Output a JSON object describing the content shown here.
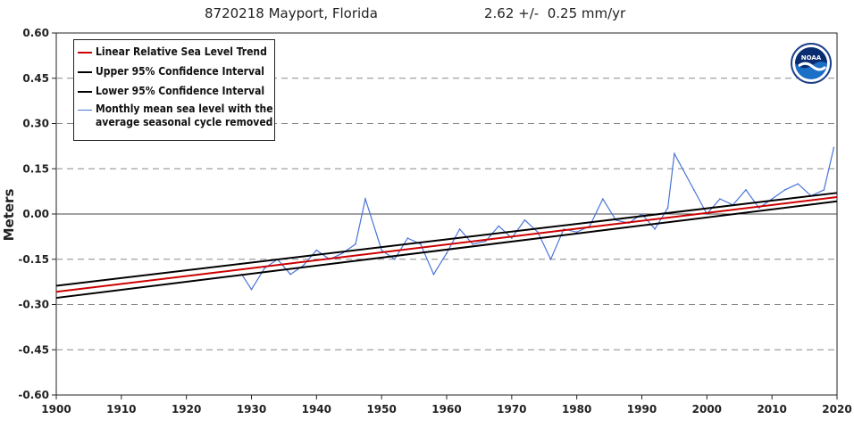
{
  "header": {
    "station": "8720218 Mayport, Florida",
    "rate": "2.62 +/-  0.25 mm/yr"
  },
  "legend": {
    "items": [
      {
        "label": "Linear Relative Sea Level Trend",
        "color": "#cc0000"
      },
      {
        "label": "Upper 95% Confidence Interval",
        "color": "#000000"
      },
      {
        "label": "Lower 95% Confidence Interval",
        "color": "#000000"
      },
      {
        "label_line1": "Monthly mean sea level with the",
        "label_line2": "average seasonal cycle removed",
        "color": "#4a74d8"
      }
    ]
  },
  "logo": {
    "name": "NOAA",
    "text": "NOAA"
  },
  "chart_data": {
    "type": "line",
    "title": "8720218 Mayport, Florida",
    "subtitle": "2.62 +/-  0.25 mm/yr",
    "xlabel": "",
    "ylabel": "Meters",
    "xlim": [
      1900,
      2020
    ],
    "ylim": [
      -0.6,
      0.6
    ],
    "x_ticks": [
      1900,
      1910,
      1920,
      1930,
      1940,
      1950,
      1960,
      1970,
      1980,
      1990,
      2000,
      2010,
      2020
    ],
    "y_ticks": [
      -0.6,
      -0.45,
      -0.3,
      -0.15,
      0.0,
      0.15,
      0.3,
      0.45,
      0.6
    ],
    "y_tick_labels": [
      "-0.60",
      "-0.45",
      "-0.30",
      "-0.15",
      "0.00",
      "0.15",
      "0.30",
      "0.45",
      "0.60"
    ],
    "grid": "horizontal-dashed",
    "series": [
      {
        "name": "Linear Relative Sea Level Trend",
        "color": "#cc0000",
        "x": [
          1900,
          2020
        ],
        "y": [
          -0.258,
          0.056
        ]
      },
      {
        "name": "Upper 95% Confidence Interval",
        "color": "#000000",
        "x": [
          1900,
          2020
        ],
        "y": [
          -0.238,
          0.07
        ]
      },
      {
        "name": "Lower 95% Confidence Interval",
        "color": "#000000",
        "x": [
          1900,
          2020
        ],
        "y": [
          -0.278,
          0.042
        ]
      },
      {
        "name": "Monthly mean sea level with the average seasonal cycle removed",
        "color": "#4a74d8",
        "x": [
          1928.5,
          1930,
          1932,
          1934,
          1936,
          1938,
          1940,
          1942,
          1944,
          1946,
          1947.5,
          1950,
          1952,
          1954,
          1956,
          1958,
          1960,
          1962,
          1964,
          1966,
          1968,
          1970,
          1972,
          1974,
          1976,
          1978,
          1980,
          1982,
          1984,
          1986,
          1988,
          1990,
          1992,
          1994,
          1995,
          1998,
          2000,
          2002,
          2004,
          2006,
          2008,
          2010,
          2012,
          2014,
          2016,
          2018,
          2019.5
        ],
        "y": [
          -0.2,
          -0.25,
          -0.18,
          -0.15,
          -0.2,
          -0.17,
          -0.12,
          -0.15,
          -0.13,
          -0.1,
          0.05,
          -0.12,
          -0.15,
          -0.08,
          -0.1,
          -0.2,
          -0.13,
          -0.05,
          -0.1,
          -0.09,
          -0.04,
          -0.08,
          -0.02,
          -0.06,
          -0.15,
          -0.05,
          -0.06,
          -0.04,
          0.05,
          -0.02,
          -0.03,
          0.0,
          -0.05,
          0.02,
          0.2,
          0.08,
          0.0,
          0.05,
          0.03,
          0.08,
          0.02,
          0.05,
          0.08,
          0.1,
          0.06,
          0.08,
          0.22
        ]
      }
    ]
  }
}
